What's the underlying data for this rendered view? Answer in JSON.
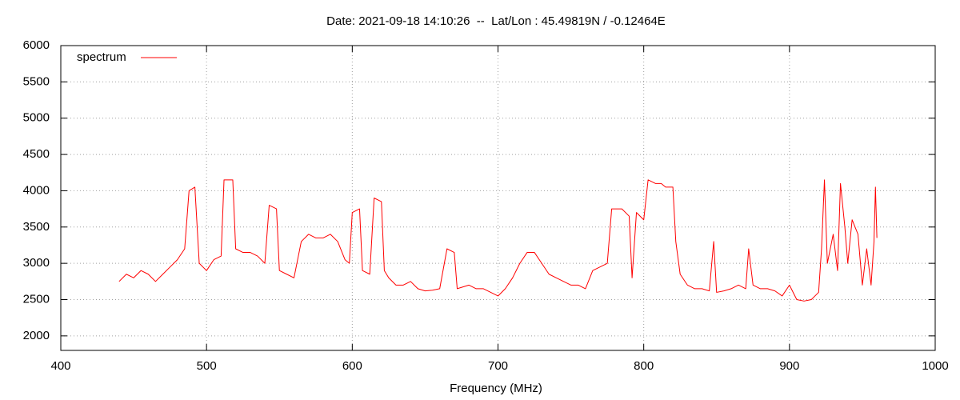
{
  "chart_data": {
    "type": "line",
    "title": "Date: 2021-09-18 14:10:26  --  Lat/Lon : 45.49819N / -0.12464E",
    "x_label": "Frequency (MHz)",
    "x": [
      440,
      445,
      450,
      455,
      460,
      465,
      470,
      475,
      480,
      485,
      488,
      492,
      495,
      500,
      505,
      510,
      512,
      518,
      520,
      525,
      530,
      535,
      540,
      543,
      548,
      550,
      555,
      560,
      565,
      570,
      575,
      580,
      585,
      590,
      595,
      598,
      600,
      605,
      607,
      612,
      615,
      620,
      622,
      625,
      630,
      635,
      640,
      645,
      650,
      655,
      660,
      665,
      670,
      672,
      680,
      685,
      690,
      695,
      700,
      705,
      710,
      715,
      720,
      725,
      730,
      735,
      740,
      745,
      750,
      755,
      760,
      765,
      770,
      775,
      778,
      785,
      790,
      792,
      795,
      800,
      803,
      808,
      812,
      815,
      820,
      822,
      825,
      830,
      835,
      840,
      845,
      848,
      850,
      855,
      860,
      865,
      870,
      872,
      875,
      880,
      885,
      890,
      895,
      900,
      905,
      910,
      915,
      920,
      922,
      924,
      926,
      930,
      933,
      935,
      938,
      940,
      943,
      947,
      950,
      953,
      956,
      958,
      959,
      960
    ],
    "series": [
      {
        "name": "spectrum",
        "color": "#ff0000",
        "values": [
          2750,
          2850,
          2800,
          2900,
          2850,
          2750,
          2850,
          2950,
          3050,
          3200,
          4000,
          4050,
          3000,
          2900,
          3050,
          3100,
          4150,
          4150,
          3200,
          3150,
          3150,
          3100,
          3000,
          3800,
          3750,
          2900,
          2850,
          2800,
          3300,
          3400,
          3350,
          3350,
          3400,
          3300,
          3050,
          3000,
          3700,
          3750,
          2900,
          2850,
          3900,
          3850,
          2900,
          2800,
          2700,
          2700,
          2750,
          2650,
          2620,
          2630,
          2650,
          3200,
          3150,
          2650,
          2700,
          2650,
          2650,
          2600,
          2550,
          2650,
          2800,
          3000,
          3150,
          3150,
          3000,
          2850,
          2800,
          2750,
          2700,
          2700,
          2650,
          2900,
          2950,
          3000,
          3750,
          3750,
          3650,
          2800,
          3700,
          3600,
          4150,
          4100,
          4100,
          4050,
          4050,
          3300,
          2850,
          2700,
          2650,
          2650,
          2620,
          3300,
          2600,
          2620,
          2650,
          2700,
          2650,
          3200,
          2700,
          2650,
          2650,
          2620,
          2550,
          2700,
          2500,
          2480,
          2500,
          2600,
          3200,
          4150,
          3000,
          3400,
          2900,
          4100,
          3500,
          3000,
          3600,
          3400,
          2700,
          3200,
          2700,
          3300,
          4050,
          3350
        ]
      }
    ],
    "xlim": [
      400,
      1000
    ],
    "xticks": [
      400,
      500,
      600,
      700,
      800,
      900,
      1000
    ],
    "ylim": [
      1800,
      6000
    ],
    "yticks": [
      2000,
      2500,
      3000,
      3500,
      4000,
      4500,
      5000,
      5500,
      6000
    ],
    "grid": true,
    "legend": "top-left"
  }
}
